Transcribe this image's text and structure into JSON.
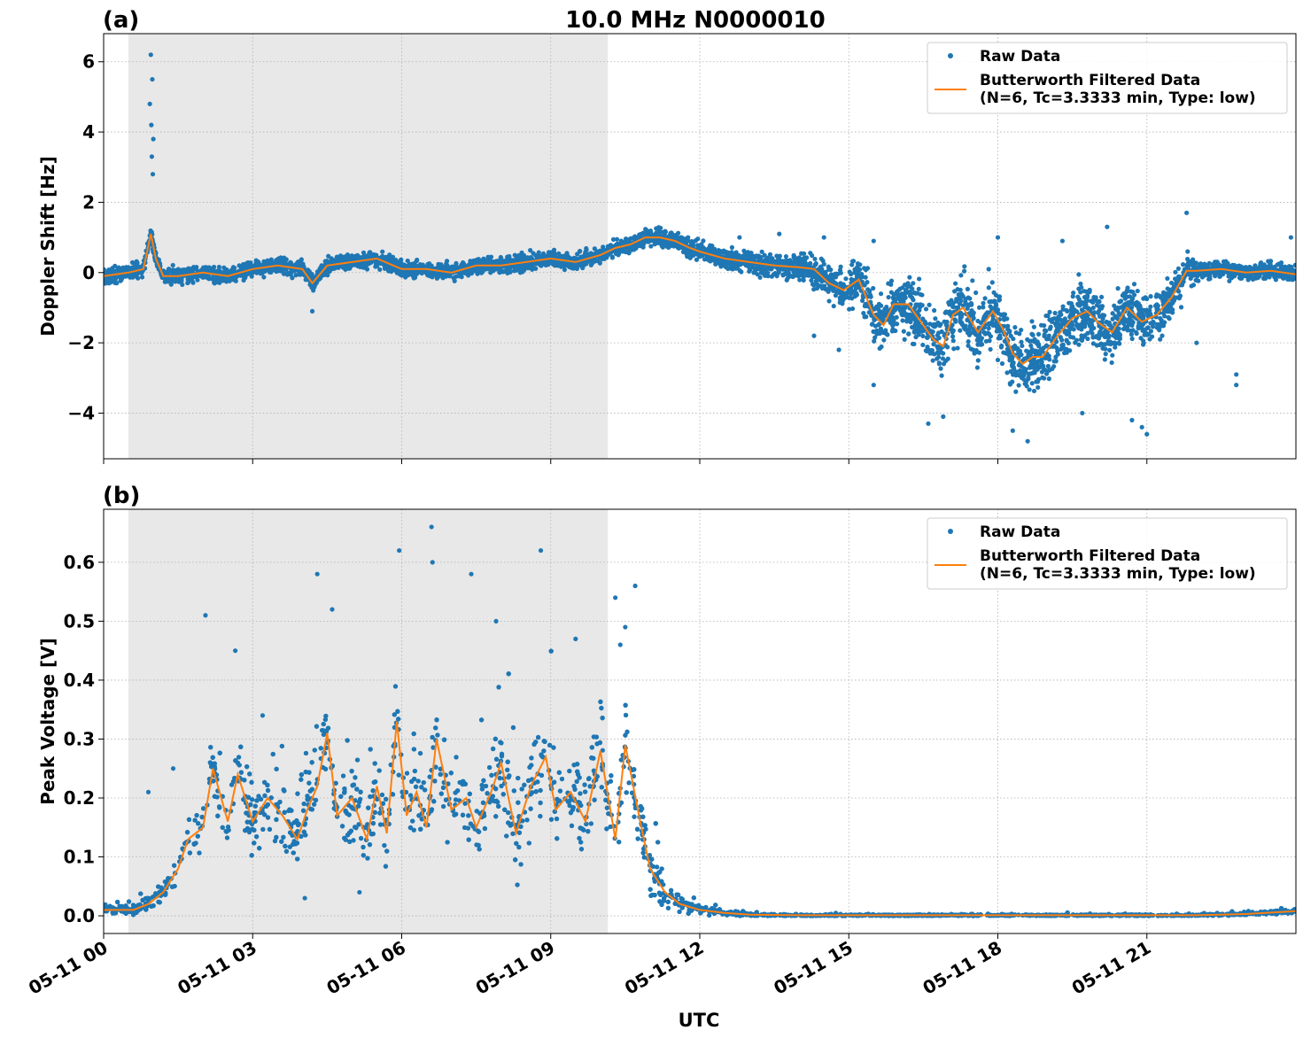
{
  "title": "10.0 MHz N0000010",
  "colors": {
    "raw": "#1f77b4",
    "filtered": "#ff7f0e",
    "shade": "#e8e8e8",
    "grid": "#b0b0b0"
  },
  "legend": {
    "raw_label": "Raw Data",
    "filtered_label_line1": "Butterworth Filtered Data",
    "filtered_label_line2": "(N=6, Tc=3.3333 min, Type: low)"
  },
  "xlabel": "UTC",
  "x_ticks": [
    "05-11 00",
    "05-11 03",
    "05-11 06",
    "05-11 09",
    "05-11 12",
    "05-11 15",
    "05-11 18",
    "05-11 21"
  ],
  "chart_data": [
    {
      "type": "scatter",
      "panel_label": "(a)",
      "title": "10.0 MHz N0000010",
      "xlabel": "",
      "ylabel": "Doppler Shift [Hz]",
      "x_unit": "hours UTC (05-11)",
      "xlim": [
        0,
        24
      ],
      "ylim": [
        -5.3,
        6.8
      ],
      "y_ticks": [
        -4,
        -2,
        0,
        2,
        4,
        6
      ],
      "y_tick_labels": [
        "−4",
        "−2",
        "0",
        "2",
        "4",
        "6"
      ],
      "grid": true,
      "legend_position": "top-right",
      "shaded_interval_hours": [
        0.5,
        10.15
      ],
      "series": [
        {
          "name": "Butterworth Filtered Data",
          "style": "line",
          "x": [
            0,
            0.5,
            0.8,
            0.95,
            1.05,
            1.2,
            1.5,
            2,
            2.5,
            3,
            3.5,
            4,
            4.2,
            4.5,
            5,
            5.5,
            6,
            6.5,
            7,
            7.5,
            8,
            8.5,
            9,
            9.5,
            10,
            10.3,
            10.6,
            10.9,
            11.2,
            11.5,
            11.8,
            12,
            12.5,
            13,
            13.5,
            14,
            14.3,
            14.6,
            14.9,
            15.2,
            15.5,
            15.7,
            15.9,
            16.2,
            16.5,
            16.7,
            16.9,
            17.1,
            17.3,
            17.6,
            17.9,
            18.1,
            18.3,
            18.5,
            18.7,
            18.9,
            19.2,
            19.5,
            19.8,
            20,
            20.3,
            20.6,
            20.9,
            21.2,
            21.5,
            21.8,
            22,
            22.5,
            23,
            23.5,
            24
          ],
          "y": [
            -0.1,
            0,
            0.1,
            1.1,
            0.4,
            -0.1,
            -0.1,
            0,
            -0.1,
            0.1,
            0.2,
            0.1,
            -0.3,
            0.2,
            0.3,
            0.4,
            0.1,
            0.1,
            0,
            0.2,
            0.2,
            0.3,
            0.4,
            0.3,
            0.5,
            0.7,
            0.8,
            1.0,
            1.0,
            0.9,
            0.7,
            0.6,
            0.4,
            0.3,
            0.2,
            0.15,
            0.1,
            -0.3,
            -0.5,
            -0.2,
            -1.2,
            -1.5,
            -0.9,
            -0.9,
            -1.5,
            -1.9,
            -2.1,
            -1.2,
            -1.0,
            -1.7,
            -1.1,
            -1.6,
            -2.3,
            -2.6,
            -2.4,
            -2.4,
            -1.8,
            -1.3,
            -1.1,
            -1.4,
            -1.7,
            -1.0,
            -1.4,
            -1.2,
            -0.7,
            0.05,
            0.05,
            0.1,
            0.0,
            0.05,
            -0.05
          ]
        },
        {
          "name": "Raw Data",
          "style": "points",
          "spread": [
            [
              0,
              0.35
            ],
            [
              10,
              0.35
            ],
            [
              12,
              0.4
            ],
            [
              14,
              0.6
            ],
            [
              15,
              1.0
            ],
            [
              16,
              1.3
            ],
            [
              18,
              1.5
            ],
            [
              20,
              1.4
            ],
            [
              21.8,
              1.0
            ],
            [
              22,
              0.4
            ],
            [
              24,
              0.4
            ]
          ],
          "outliers": [
            [
              0.95,
              6.2
            ],
            [
              0.98,
              5.5
            ],
            [
              0.93,
              4.8
            ],
            [
              0.96,
              4.2
            ],
            [
              1.0,
              3.8
            ],
            [
              0.97,
              3.3
            ],
            [
              0.99,
              2.8
            ],
            [
              4.2,
              -1.1
            ],
            [
              14.3,
              -1.8
            ],
            [
              14.8,
              -2.2
            ],
            [
              15.5,
              -3.2
            ],
            [
              16.6,
              -4.3
            ],
            [
              16.9,
              -4.1
            ],
            [
              18.3,
              -4.5
            ],
            [
              18.6,
              -4.8
            ],
            [
              19.7,
              -4.0
            ],
            [
              20.7,
              -4.2
            ],
            [
              20.9,
              -4.4
            ],
            [
              21.0,
              -4.6
            ],
            [
              22.0,
              -2.0
            ],
            [
              22.8,
              -3.2
            ],
            [
              22.8,
              -2.9
            ],
            [
              21.8,
              1.7
            ],
            [
              20.2,
              1.3
            ],
            [
              23.9,
              1.0
            ],
            [
              14.5,
              1.0
            ],
            [
              18,
              1.0
            ],
            [
              13.6,
              1.1
            ],
            [
              12.8,
              1.0
            ],
            [
              15.5,
              0.9
            ],
            [
              19.3,
              0.9
            ]
          ]
        }
      ]
    },
    {
      "type": "scatter",
      "panel_label": "(b)",
      "title": "",
      "xlabel": "UTC",
      "ylabel": "Peak Voltage [V]",
      "x_unit": "hours UTC (05-11)",
      "xlim": [
        0,
        24
      ],
      "ylim": [
        -0.03,
        0.69
      ],
      "y_ticks": [
        0.0,
        0.1,
        0.2,
        0.3,
        0.4,
        0.5,
        0.6
      ],
      "y_tick_labels": [
        "0.0",
        "0.1",
        "0.2",
        "0.3",
        "0.4",
        "0.5",
        "0.6"
      ],
      "grid": true,
      "legend_position": "top-right",
      "shaded_interval_hours": [
        0.5,
        10.15
      ],
      "series": [
        {
          "name": "Butterworth Filtered Data",
          "style": "line",
          "x": [
            0,
            0.3,
            0.6,
            0.9,
            1.2,
            1.5,
            1.7,
            2,
            2.2,
            2.5,
            2.7,
            3,
            3.3,
            3.6,
            3.9,
            4.1,
            4.3,
            4.5,
            4.7,
            5,
            5.3,
            5.5,
            5.7,
            5.9,
            6.1,
            6.3,
            6.5,
            6.7,
            7,
            7.3,
            7.5,
            7.8,
            8,
            8.3,
            8.6,
            8.9,
            9.1,
            9.4,
            9.7,
            10,
            10.3,
            10.5,
            10.8,
            11,
            11.3,
            11.6,
            12,
            12.5,
            13,
            14,
            16,
            18,
            20,
            22,
            23,
            24
          ],
          "y": [
            0.01,
            0.01,
            0.01,
            0.02,
            0.04,
            0.08,
            0.13,
            0.15,
            0.25,
            0.16,
            0.24,
            0.16,
            0.2,
            0.17,
            0.13,
            0.18,
            0.22,
            0.31,
            0.17,
            0.2,
            0.13,
            0.22,
            0.14,
            0.33,
            0.17,
            0.21,
            0.15,
            0.3,
            0.18,
            0.2,
            0.15,
            0.21,
            0.26,
            0.14,
            0.22,
            0.27,
            0.18,
            0.21,
            0.16,
            0.28,
            0.13,
            0.29,
            0.16,
            0.08,
            0.04,
            0.02,
            0.01,
            0.005,
            0.002,
            0.001,
            0.001,
            0.001,
            0.001,
            0.001,
            0.003,
            0.008
          ]
        },
        {
          "name": "Raw Data",
          "style": "points",
          "spread": [
            [
              0,
              0.01
            ],
            [
              1,
              0.02
            ],
            [
              1.5,
              0.05
            ],
            [
              2,
              0.08
            ],
            [
              4,
              0.11
            ],
            [
              6,
              0.12
            ],
            [
              8,
              0.13
            ],
            [
              10,
              0.12
            ],
            [
              11,
              0.08
            ],
            [
              11.5,
              0.03
            ],
            [
              12,
              0.012
            ],
            [
              13,
              0.004
            ],
            [
              14,
              0.002
            ],
            [
              22,
              0.002
            ],
            [
              24,
              0.006
            ]
          ],
          "outliers": [
            [
              0.9,
              0.21
            ],
            [
              2.05,
              0.51
            ],
            [
              2.65,
              0.45
            ],
            [
              3.2,
              0.34
            ],
            [
              4.3,
              0.58
            ],
            [
              4.6,
              0.52
            ],
            [
              5.95,
              0.62
            ],
            [
              6.6,
              0.66
            ],
            [
              6.62,
              0.6
            ],
            [
              7.4,
              0.58
            ],
            [
              8.8,
              0.62
            ],
            [
              10.3,
              0.54
            ],
            [
              10.5,
              0.49
            ],
            [
              10.7,
              0.56
            ],
            [
              4.05,
              0.03
            ],
            [
              5.15,
              0.04
            ],
            [
              1.4,
              0.25
            ],
            [
              7.9,
              0.5
            ],
            [
              9.5,
              0.47
            ],
            [
              10.4,
              0.46
            ]
          ]
        }
      ]
    }
  ]
}
